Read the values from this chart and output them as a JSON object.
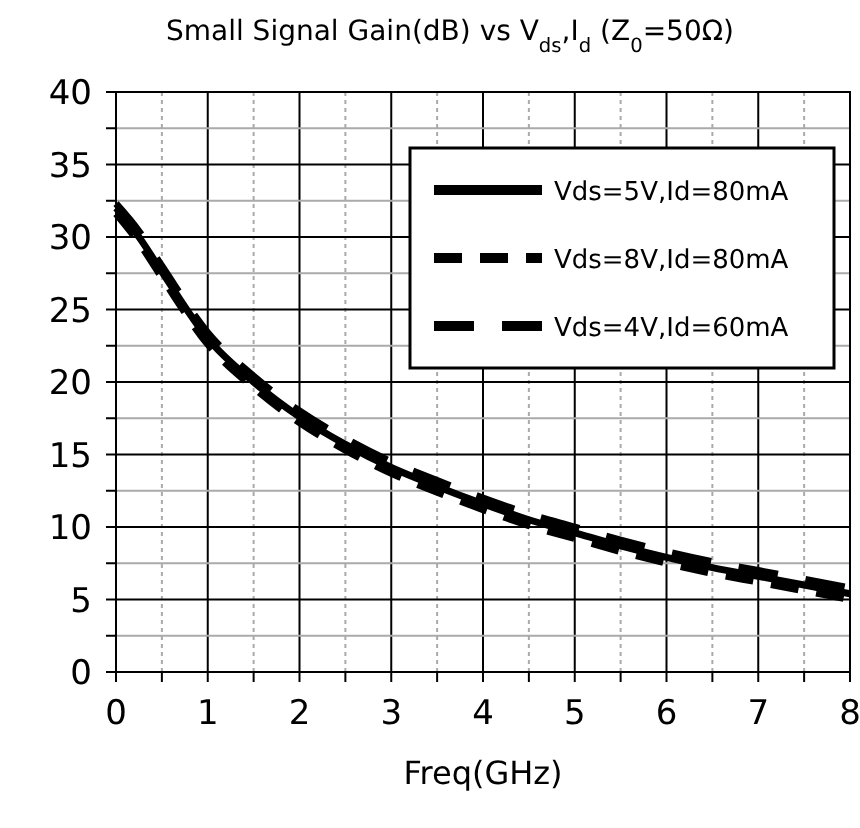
{
  "chart_data": {
    "type": "line",
    "title": "Small Signal Gain(dB) vs V$_{ds}$,I$_{d}$ (Z$_{0}$=50Ω)",
    "xlabel": "Freq(GHz)",
    "x": [
      0,
      0.25,
      0.5,
      1,
      1.5,
      2,
      2.5,
      3,
      3.5,
      4,
      4.5,
      5,
      5.5,
      6,
      6.5,
      7,
      7.5,
      8
    ],
    "series": [
      {
        "name": "Vds=5V,Id=80mA",
        "color": "#000000",
        "line_style": "solid",
        "values": [
          32,
          30,
          27.6,
          23,
          20,
          17.6,
          15.7,
          14.1,
          12.8,
          11.6,
          10.5,
          9.6,
          8.7,
          7.9,
          7.2,
          6.6,
          6,
          5.4
        ]
      },
      {
        "name": "Vds=8V,Id=80mA",
        "color": "#000000",
        "line_style": "dashed",
        "values": [
          31.6,
          29.6,
          27.2,
          22.6,
          19.6,
          17.2,
          15.3,
          13.7,
          12.4,
          11.2,
          10.1,
          9.2,
          8.3,
          7.5,
          6.8,
          6.2,
          5.6,
          5
        ]
      },
      {
        "name": "Vds=4V,Id=60mA",
        "color": "#000000",
        "line_style": "dashed",
        "values": [
          32.3,
          30.4,
          28,
          23.4,
          20.4,
          18,
          16.1,
          14.5,
          13.2,
          12,
          10.9,
          10,
          9.1,
          8.3,
          7.6,
          7,
          6.4,
          5.8
        ]
      }
    ],
    "xlim": [
      0,
      8
    ],
    "xticks": [
      0,
      {
        "value": 0.5,
        "label": null
      },
      1,
      {
        "value": 1.5,
        "label": null
      },
      2,
      {
        "value": 2.5,
        "label": null
      },
      3,
      {
        "value": 3.5,
        "label": null
      },
      4,
      {
        "value": 4.5,
        "label": null
      },
      5,
      {
        "value": 5.5,
        "label": null
      },
      6,
      {
        "value": 6.5,
        "label": null
      },
      7,
      {
        "value": 7.5,
        "label": null
      },
      8
    ],
    "ylim": [
      0,
      40
    ],
    "yticks": [
      0,
      {
        "value": 2.5,
        "label": null
      },
      5,
      {
        "value": 7.5,
        "label": null
      },
      10,
      {
        "value": 12.5,
        "label": null
      },
      15,
      {
        "value": 17.5,
        "label": null
      },
      20,
      {
        "value": 22.5,
        "label": null
      },
      25,
      {
        "value": 27.5,
        "label": null
      },
      30,
      {
        "value": 32.5,
        "label": null
      },
      35,
      {
        "value": 37.5,
        "label": null
      },
      40
    ],
    "grid": true,
    "legend": "top right"
  }
}
